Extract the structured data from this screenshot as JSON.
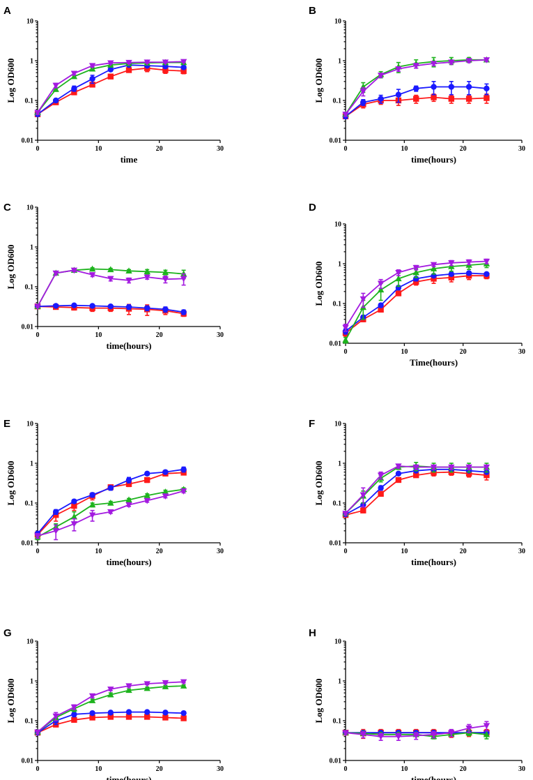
{
  "colors": {
    "red": "#ff1a1a",
    "blue": "#1a1aff",
    "green": "#1db31d",
    "purple": "#a31ae0"
  },
  "chart_data": [
    {
      "panel": "A",
      "type": "line",
      "title": "",
      "xlabel": "time",
      "ylabel": "Log OD600",
      "xlim": [
        0,
        30
      ],
      "ylim": [
        0.01,
        10
      ],
      "yscale": "log",
      "xticks": [
        "0",
        "10",
        "20",
        "30"
      ],
      "yticks": [
        "0.01",
        "0.1",
        "1",
        "10"
      ],
      "x": [
        0,
        3,
        6,
        9,
        12,
        15,
        18,
        21,
        24
      ],
      "series": [
        {
          "name": "red",
          "marker": "square",
          "values": [
            0.045,
            0.09,
            0.16,
            0.25,
            0.4,
            0.58,
            0.65,
            0.58,
            0.55
          ],
          "errors": [
            0.005,
            0.01,
            0.02,
            0.03,
            0.04,
            0.05,
            0.12,
            0.1,
            0.08
          ]
        },
        {
          "name": "blue",
          "marker": "circle",
          "values": [
            0.045,
            0.1,
            0.2,
            0.35,
            0.6,
            0.78,
            0.75,
            0.72,
            0.68
          ],
          "errors": [
            0.005,
            0.01,
            0.03,
            0.08,
            0.05,
            0.05,
            0.05,
            0.05,
            0.05
          ]
        },
        {
          "name": "green",
          "marker": "triangle-up",
          "values": [
            0.05,
            0.19,
            0.4,
            0.62,
            0.78,
            0.85,
            0.88,
            0.9,
            0.9
          ],
          "errors": [
            0.005,
            0.02,
            0.03,
            0.04,
            0.04,
            0.04,
            0.04,
            0.04,
            0.04
          ]
        },
        {
          "name": "purple",
          "marker": "triangle-down",
          "values": [
            0.05,
            0.24,
            0.48,
            0.75,
            0.88,
            0.9,
            0.92,
            0.92,
            0.95
          ],
          "errors": [
            0.005,
            0.03,
            0.04,
            0.05,
            0.05,
            0.05,
            0.05,
            0.05,
            0.05
          ]
        }
      ]
    },
    {
      "panel": "B",
      "type": "line",
      "title": "",
      "xlabel": "time(hours)",
      "ylabel": "Log OD600",
      "xlim": [
        0,
        30
      ],
      "ylim": [
        0.01,
        10
      ],
      "yscale": "log",
      "xticks": [
        "0",
        "10",
        "20",
        "30"
      ],
      "yticks": [
        "0.01",
        "0.1",
        "1",
        "10"
      ],
      "x": [
        0,
        3,
        6,
        9,
        12,
        15,
        18,
        21,
        24
      ],
      "series": [
        {
          "name": "red",
          "marker": "square",
          "values": [
            0.04,
            0.08,
            0.1,
            0.1,
            0.11,
            0.12,
            0.11,
            0.11,
            0.115
          ],
          "errors": [
            0.005,
            0.015,
            0.02,
            0.025,
            0.025,
            0.025,
            0.025,
            0.025,
            0.03
          ]
        },
        {
          "name": "blue",
          "marker": "circle",
          "values": [
            0.04,
            0.09,
            0.11,
            0.14,
            0.2,
            0.22,
            0.22,
            0.22,
            0.2
          ],
          "errors": [
            0.005,
            0.015,
            0.025,
            0.05,
            0.03,
            0.08,
            0.08,
            0.08,
            0.06
          ]
        },
        {
          "name": "green",
          "marker": "triangle-up",
          "values": [
            0.045,
            0.22,
            0.45,
            0.7,
            0.85,
            0.95,
            1.0,
            1.05,
            1.05
          ],
          "errors": [
            0.005,
            0.06,
            0.08,
            0.2,
            0.2,
            0.25,
            0.2,
            0.15,
            0.1
          ]
        },
        {
          "name": "purple",
          "marker": "triangle-down",
          "values": [
            0.045,
            0.17,
            0.43,
            0.62,
            0.75,
            0.85,
            0.92,
            1.0,
            1.05
          ],
          "errors": [
            0.005,
            0.04,
            0.05,
            0.08,
            0.1,
            0.1,
            0.1,
            0.1,
            0.1
          ]
        }
      ]
    },
    {
      "panel": "C",
      "type": "line",
      "title": "",
      "xlabel": "time(hours)",
      "ylabel": "Log OD600",
      "xlim": [
        0,
        30
      ],
      "ylim": [
        0.01,
        10
      ],
      "yscale": "log",
      "xticks": [
        "0",
        "10",
        "20",
        "30"
      ],
      "yticks": [
        "0.01",
        "0.1",
        "1",
        "10"
      ],
      "x": [
        0,
        3,
        6,
        9,
        12,
        15,
        18,
        21,
        24
      ],
      "series": [
        {
          "name": "red",
          "marker": "square",
          "values": [
            0.032,
            0.031,
            0.03,
            0.029,
            0.029,
            0.028,
            0.027,
            0.025,
            0.021
          ],
          "errors": [
            0.002,
            0.003,
            0.004,
            0.005,
            0.005,
            0.008,
            0.008,
            0.005,
            0.003
          ]
        },
        {
          "name": "blue",
          "marker": "circle",
          "values": [
            0.032,
            0.033,
            0.034,
            0.033,
            0.032,
            0.031,
            0.029,
            0.027,
            0.023
          ],
          "errors": [
            0.002,
            0.002,
            0.002,
            0.003,
            0.003,
            0.004,
            0.004,
            0.004,
            0.003
          ]
        },
        {
          "name": "green",
          "marker": "triangle-up",
          "values": [
            0.032,
            0.22,
            0.26,
            0.28,
            0.27,
            0.25,
            0.24,
            0.23,
            0.21
          ],
          "errors": [
            0.002,
            0.02,
            0.02,
            0.02,
            0.02,
            0.02,
            0.03,
            0.03,
            0.05
          ]
        },
        {
          "name": "purple",
          "marker": "triangle-down",
          "values": [
            0.032,
            0.22,
            0.26,
            0.2,
            0.16,
            0.145,
            0.175,
            0.155,
            0.16
          ],
          "errors": [
            0.002,
            0.02,
            0.02,
            0.02,
            0.02,
            0.02,
            0.02,
            0.03,
            0.05
          ]
        }
      ]
    },
    {
      "panel": "D",
      "type": "line",
      "title": "",
      "xlabel": "Time(hours)",
      "ylabel": "Log OD600",
      "xlim": [
        0,
        30
      ],
      "ylim": [
        0.01,
        10
      ],
      "yscale": "log",
      "xticks": [
        "0",
        "10",
        "20",
        "30"
      ],
      "yticks": [
        "0.01",
        "0.1",
        "1",
        "10"
      ],
      "x": [
        0,
        3,
        6,
        9,
        12,
        15,
        18,
        21,
        24
      ],
      "series": [
        {
          "name": "red",
          "marker": "square",
          "values": [
            0.018,
            0.04,
            0.07,
            0.18,
            0.35,
            0.42,
            0.45,
            0.5,
            0.5
          ],
          "errors": [
            0.003,
            0.005,
            0.008,
            0.02,
            0.06,
            0.1,
            0.1,
            0.1,
            0.08
          ]
        },
        {
          "name": "blue",
          "marker": "circle",
          "values": [
            0.02,
            0.045,
            0.09,
            0.25,
            0.42,
            0.5,
            0.55,
            0.58,
            0.55
          ],
          "errors": [
            0.003,
            0.005,
            0.01,
            0.03,
            0.05,
            0.05,
            0.05,
            0.06,
            0.05
          ]
        },
        {
          "name": "green",
          "marker": "triangle-up",
          "values": [
            0.012,
            0.08,
            0.22,
            0.42,
            0.6,
            0.75,
            0.85,
            0.92,
            1.0
          ],
          "errors": [
            0.002,
            0.04,
            0.1,
            0.15,
            0.15,
            0.2,
            0.2,
            0.2,
            0.2
          ]
        },
        {
          "name": "purple",
          "marker": "triangle-down",
          "values": [
            0.025,
            0.13,
            0.32,
            0.6,
            0.8,
            0.95,
            1.05,
            1.1,
            1.15
          ],
          "errors": [
            0.005,
            0.05,
            0.08,
            0.1,
            0.1,
            0.1,
            0.15,
            0.15,
            0.15
          ]
        }
      ]
    },
    {
      "panel": "E",
      "type": "line",
      "title": "",
      "xlabel": "time(hours)",
      "ylabel": "Log OD600",
      "xlim": [
        0,
        30
      ],
      "ylim": [
        0.01,
        10
      ],
      "yscale": "log",
      "xticks": [
        "0",
        "10",
        "20",
        "30"
      ],
      "yticks": [
        "0.01",
        "0.1",
        "1",
        "10"
      ],
      "x": [
        0,
        3,
        6,
        9,
        12,
        15,
        18,
        21,
        24
      ],
      "series": [
        {
          "name": "red",
          "marker": "square",
          "values": [
            0.016,
            0.05,
            0.085,
            0.15,
            0.25,
            0.3,
            0.38,
            0.55,
            0.58
          ],
          "errors": [
            0.002,
            0.015,
            0.02,
            0.03,
            0.03,
            0.04,
            0.05,
            0.06,
            0.06
          ]
        },
        {
          "name": "blue",
          "marker": "circle",
          "values": [
            0.017,
            0.06,
            0.11,
            0.16,
            0.24,
            0.38,
            0.55,
            0.6,
            0.7
          ],
          "errors": [
            0.002,
            0.008,
            0.01,
            0.02,
            0.03,
            0.06,
            0.05,
            0.06,
            0.1
          ]
        },
        {
          "name": "green",
          "marker": "triangle-up",
          "values": [
            0.014,
            0.025,
            0.045,
            0.09,
            0.1,
            0.12,
            0.155,
            0.19,
            0.22
          ],
          "errors": [
            0.002,
            0.005,
            0.015,
            0.01,
            0.01,
            0.01,
            0.015,
            0.02,
            0.02
          ]
        },
        {
          "name": "purple",
          "marker": "triangle-down",
          "values": [
            0.015,
            0.02,
            0.03,
            0.05,
            0.06,
            0.09,
            0.115,
            0.15,
            0.2
          ],
          "errors": [
            0.002,
            0.008,
            0.01,
            0.015,
            0.005,
            0.008,
            0.01,
            0.015,
            0.02
          ]
        }
      ]
    },
    {
      "panel": "F",
      "type": "line",
      "title": "",
      "xlabel": "time(hours)",
      "ylabel": "Log OD600",
      "xlim": [
        0,
        30
      ],
      "ylim": [
        0.01,
        10
      ],
      "yscale": "log",
      "xticks": [
        "0",
        "10",
        "20",
        "30"
      ],
      "yticks": [
        "0.01",
        "0.1",
        "1",
        "10"
      ],
      "x": [
        0,
        3,
        6,
        9,
        12,
        15,
        18,
        21,
        24
      ],
      "series": [
        {
          "name": "red",
          "marker": "square",
          "values": [
            0.05,
            0.065,
            0.17,
            0.38,
            0.5,
            0.58,
            0.6,
            0.55,
            0.5
          ],
          "errors": [
            0.005,
            0.008,
            0.02,
            0.04,
            0.05,
            0.1,
            0.1,
            0.1,
            0.12
          ]
        },
        {
          "name": "blue",
          "marker": "circle",
          "values": [
            0.052,
            0.09,
            0.24,
            0.55,
            0.65,
            0.7,
            0.7,
            0.65,
            0.6
          ],
          "errors": [
            0.005,
            0.01,
            0.03,
            0.05,
            0.05,
            0.05,
            0.05,
            0.05,
            0.05
          ]
        },
        {
          "name": "green",
          "marker": "triangle-up",
          "values": [
            0.055,
            0.15,
            0.42,
            0.8,
            0.85,
            0.8,
            0.8,
            0.8,
            0.8
          ],
          "errors": [
            0.005,
            0.05,
            0.08,
            0.1,
            0.2,
            0.2,
            0.2,
            0.2,
            0.2
          ]
        },
        {
          "name": "purple",
          "marker": "triangle-down",
          "values": [
            0.055,
            0.16,
            0.5,
            0.85,
            0.8,
            0.8,
            0.8,
            0.8,
            0.8
          ],
          "errors": [
            0.005,
            0.08,
            0.1,
            0.1,
            0.1,
            0.1,
            0.1,
            0.1,
            0.1
          ]
        }
      ]
    },
    {
      "panel": "G",
      "type": "line",
      "title": "",
      "xlabel": "time(hours)",
      "ylabel": "Log OD600",
      "xlim": [
        0,
        30
      ],
      "ylim": [
        0.01,
        10
      ],
      "yscale": "log",
      "xticks": [
        "0",
        "10",
        "20",
        "30"
      ],
      "yticks": [
        "0.01",
        "0.1",
        "1",
        "10"
      ],
      "x": [
        0,
        3,
        6,
        9,
        12,
        15,
        18,
        21,
        24
      ],
      "series": [
        {
          "name": "red",
          "marker": "square",
          "values": [
            0.05,
            0.08,
            0.105,
            0.12,
            0.125,
            0.125,
            0.125,
            0.12,
            0.115
          ],
          "errors": [
            0.005,
            0.01,
            0.01,
            0.01,
            0.01,
            0.01,
            0.01,
            0.01,
            0.01
          ]
        },
        {
          "name": "blue",
          "marker": "circle",
          "values": [
            0.05,
            0.1,
            0.145,
            0.155,
            0.16,
            0.165,
            0.165,
            0.16,
            0.155
          ],
          "errors": [
            0.005,
            0.02,
            0.02,
            0.01,
            0.01,
            0.01,
            0.01,
            0.01,
            0.01
          ]
        },
        {
          "name": "green",
          "marker": "triangle-up",
          "values": [
            0.052,
            0.12,
            0.2,
            0.32,
            0.45,
            0.58,
            0.65,
            0.72,
            0.75
          ],
          "errors": [
            0.005,
            0.02,
            0.03,
            0.03,
            0.05,
            0.05,
            0.05,
            0.05,
            0.05
          ]
        },
        {
          "name": "purple",
          "marker": "triangle-down",
          "values": [
            0.052,
            0.13,
            0.22,
            0.42,
            0.62,
            0.75,
            0.85,
            0.9,
            0.95
          ],
          "errors": [
            0.005,
            0.03,
            0.03,
            0.04,
            0.05,
            0.05,
            0.05,
            0.05,
            0.06
          ]
        }
      ]
    },
    {
      "panel": "H",
      "type": "line",
      "title": "",
      "xlabel": "time(hours)",
      "ylabel": "Log OD600",
      "xlim": [
        0,
        30
      ],
      "ylim": [
        0.01,
        10
      ],
      "yscale": "log",
      "xticks": [
        "0",
        "10",
        "20",
        "30"
      ],
      "yticks": [
        "0.01",
        "0.1",
        "1",
        "10"
      ],
      "x": [
        0,
        3,
        6,
        9,
        12,
        15,
        18,
        21,
        24
      ],
      "series": [
        {
          "name": "red",
          "marker": "square",
          "values": [
            0.05,
            0.048,
            0.05,
            0.05,
            0.05,
            0.05,
            0.048,
            0.05,
            0.05
          ],
          "errors": [
            0.005,
            0.012,
            0.01,
            0.01,
            0.01,
            0.01,
            0.01,
            0.01,
            0.01
          ]
        },
        {
          "name": "blue",
          "marker": "circle",
          "values": [
            0.05,
            0.05,
            0.05,
            0.05,
            0.05,
            0.05,
            0.05,
            0.05,
            0.05
          ],
          "errors": [
            0.005,
            0.005,
            0.005,
            0.005,
            0.005,
            0.005,
            0.005,
            0.005,
            0.005
          ]
        },
        {
          "name": "green",
          "marker": "triangle-up",
          "values": [
            0.05,
            0.048,
            0.045,
            0.045,
            0.045,
            0.04,
            0.045,
            0.05,
            0.045
          ],
          "errors": [
            0.005,
            0.005,
            0.005,
            0.005,
            0.005,
            0.005,
            0.005,
            0.008,
            0.01
          ]
        },
        {
          "name": "purple",
          "marker": "triangle-down",
          "values": [
            0.05,
            0.045,
            0.04,
            0.04,
            0.042,
            0.045,
            0.05,
            0.065,
            0.075
          ],
          "errors": [
            0.005,
            0.008,
            0.008,
            0.008,
            0.008,
            0.008,
            0.01,
            0.015,
            0.02
          ]
        }
      ]
    }
  ]
}
